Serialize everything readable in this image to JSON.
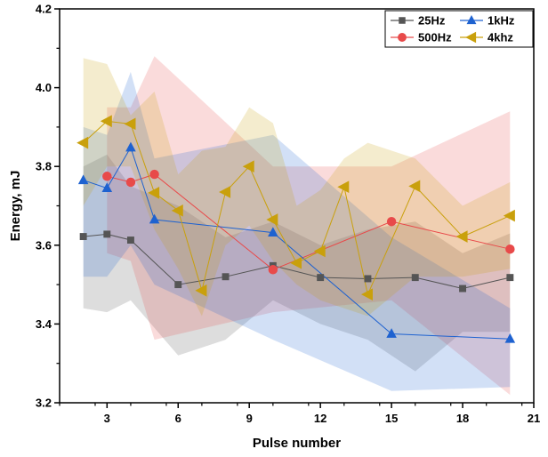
{
  "chart_data": {
    "type": "line",
    "title": "",
    "xlabel": "Pulse number",
    "ylabel": "Energy, mJ",
    "xlim": [
      1,
      21
    ],
    "ylim": [
      3.2,
      4.2
    ],
    "xticks": [
      3,
      6,
      9,
      12,
      15,
      18,
      21
    ],
    "yticks": [
      3.2,
      3.4,
      3.6,
      3.8,
      4.0,
      4.2
    ],
    "xtick_labels": [
      "3",
      "6",
      "9",
      "12",
      "15",
      "18",
      "21"
    ],
    "ytick_labels": [
      "3.2",
      "3.4",
      "3.6",
      "3.8",
      "4.0",
      "4.2"
    ],
    "legend_position": "top-right",
    "grid": false,
    "series": [
      {
        "name": "25Hz",
        "color": "#555555",
        "marker": "square",
        "x": [
          2,
          3,
          4,
          6,
          8,
          10,
          12,
          14,
          16,
          18,
          20
        ],
        "y": [
          3.622,
          3.628,
          3.613,
          3.5,
          3.52,
          3.548,
          3.518,
          3.515,
          3.518,
          3.49,
          3.518
        ],
        "upper": [
          3.8,
          3.83,
          3.75,
          3.7,
          3.62,
          3.66,
          3.6,
          3.64,
          3.66,
          3.58,
          3.63
        ],
        "lower": [
          3.44,
          3.43,
          3.46,
          3.32,
          3.36,
          3.46,
          3.4,
          3.36,
          3.28,
          3.38,
          3.38
        ]
      },
      {
        "name": "500Hz",
        "color": "#e84a4a",
        "marker": "circle",
        "x": [
          3,
          4,
          5,
          10,
          15,
          20
        ],
        "y": [
          3.775,
          3.76,
          3.78,
          3.538,
          3.66,
          3.59
        ],
        "upper": [
          3.95,
          3.95,
          4.08,
          3.8,
          3.8,
          3.94
        ],
        "lower": [
          3.58,
          3.56,
          3.36,
          3.43,
          3.46,
          3.22
        ]
      },
      {
        "name": "1kHz",
        "color": "#1e62d0",
        "marker": "triangle-up",
        "x": [
          2,
          3,
          4,
          5,
          10,
          15,
          20
        ],
        "y": [
          3.765,
          3.745,
          3.848,
          3.665,
          3.632,
          3.375,
          3.362
        ],
        "upper": [
          3.9,
          3.88,
          4.04,
          3.82,
          3.88,
          3.62,
          3.44
        ],
        "lower": [
          3.52,
          3.52,
          3.6,
          3.5,
          3.36,
          3.23,
          3.24
        ]
      },
      {
        "name": "4khz",
        "color": "#c9a00c",
        "marker": "triangle-left",
        "x": [
          2,
          3,
          4,
          5,
          6,
          7,
          8,
          9,
          10,
          11,
          12,
          13,
          14,
          16,
          18,
          20
        ],
        "y": [
          3.86,
          3.915,
          3.908,
          3.733,
          3.688,
          3.485,
          3.735,
          3.8,
          3.665,
          3.555,
          3.585,
          3.748,
          3.475,
          3.75,
          3.622,
          3.675
        ],
        "upper": [
          4.075,
          4.06,
          3.93,
          3.99,
          3.78,
          3.84,
          3.85,
          3.95,
          3.91,
          3.7,
          3.74,
          3.82,
          3.86,
          3.82,
          3.7,
          3.76
        ],
        "lower": [
          3.7,
          3.8,
          3.8,
          3.64,
          3.54,
          3.42,
          3.6,
          3.65,
          3.56,
          3.5,
          3.46,
          3.44,
          3.42,
          3.52,
          3.52,
          3.54
        ]
      }
    ]
  }
}
